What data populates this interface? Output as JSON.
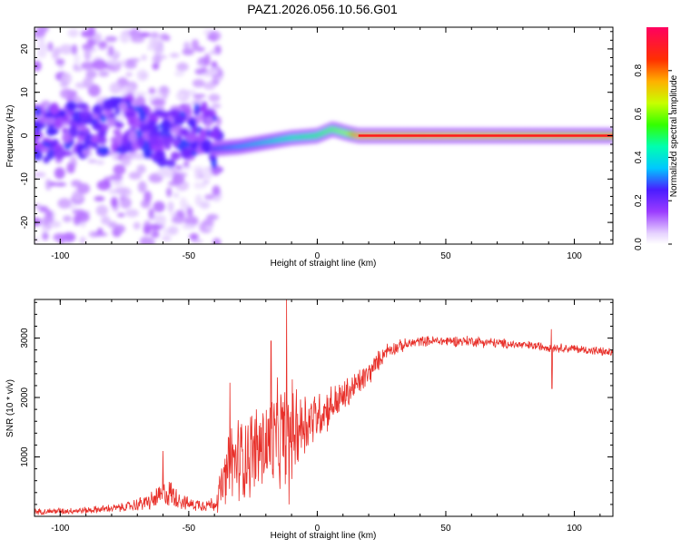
{
  "title": "PAZ1.2026.056.10.56.G01",
  "colors": {
    "snr_line": "#e8302a",
    "axis": "#000000",
    "spectrum_line": "#ff1a1a"
  },
  "chart_data": [
    {
      "type": "heatmap",
      "name": "spectrogram",
      "xlabel": "Height of straight line (km)",
      "ylabel": "Frequency (Hz)",
      "xlim": [
        -110,
        115
      ],
      "ylim": [
        -25,
        25
      ],
      "xticks": [
        -100,
        -50,
        0,
        50,
        100
      ],
      "yticks": [
        -20,
        -10,
        0,
        10,
        20
      ],
      "ridge": [
        {
          "x": -110,
          "y": 0,
          "a": 0.15
        },
        {
          "x": -80,
          "y": 2,
          "a": 0.2
        },
        {
          "x": -70,
          "y": 3,
          "a": 0.25
        },
        {
          "x": -60,
          "y": -1,
          "a": 0.22
        },
        {
          "x": -50,
          "y": 1,
          "a": 0.2
        },
        {
          "x": -42,
          "y": 3,
          "a": 0.18
        },
        {
          "x": -40,
          "y": -3,
          "a": 0.28
        },
        {
          "x": -30,
          "y": -2.5,
          "a": 0.35
        },
        {
          "x": -20,
          "y": -1.5,
          "a": 0.42
        },
        {
          "x": -10,
          "y": -0.5,
          "a": 0.5
        },
        {
          "x": 0,
          "y": 0,
          "a": 0.55
        },
        {
          "x": 6,
          "y": 1.5,
          "a": 0.6
        },
        {
          "x": 12,
          "y": 0.5,
          "a": 0.65
        },
        {
          "x": 16,
          "y": 0,
          "a": 0.95
        },
        {
          "x": 115,
          "y": 0,
          "a": 0.9
        }
      ],
      "colorbar": {
        "label": "Normalized spectral amplitude",
        "range": [
          0,
          1
        ],
        "ticks": [
          0.0,
          0.2,
          0.4,
          0.6,
          0.8
        ],
        "tick_labels": [
          "0.0",
          "0.2",
          "0.4",
          "0.6",
          "0.8"
        ]
      }
    },
    {
      "type": "line",
      "name": "snr",
      "xlabel": "Height of straight line (km)",
      "ylabel": "SNR (10 * v/v)",
      "xlim": [
        -110,
        115
      ],
      "ylim": [
        0,
        3650
      ],
      "xticks": [
        -100,
        -50,
        0,
        50,
        100
      ],
      "yticks": [
        1000,
        2000,
        3000
      ],
      "envelope": [
        {
          "x": -110,
          "y": 80,
          "n": 60
        },
        {
          "x": -90,
          "y": 100,
          "n": 70
        },
        {
          "x": -75,
          "y": 150,
          "n": 90
        },
        {
          "x": -65,
          "y": 250,
          "n": 180
        },
        {
          "x": -58,
          "y": 400,
          "n": 300
        },
        {
          "x": -50,
          "y": 200,
          "n": 120
        },
        {
          "x": -40,
          "y": 200,
          "n": 150
        },
        {
          "x": -36,
          "y": 600,
          "n": 600
        },
        {
          "x": -33,
          "y": 900,
          "n": 900
        },
        {
          "x": -25,
          "y": 1100,
          "n": 900
        },
        {
          "x": -15,
          "y": 1300,
          "n": 1100
        },
        {
          "x": -8,
          "y": 1500,
          "n": 900
        },
        {
          "x": 0,
          "y": 1700,
          "n": 500
        },
        {
          "x": 10,
          "y": 2000,
          "n": 350
        },
        {
          "x": 20,
          "y": 2400,
          "n": 250
        },
        {
          "x": 27,
          "y": 2800,
          "n": 150
        },
        {
          "x": 40,
          "y": 2950,
          "n": 100
        },
        {
          "x": 60,
          "y": 2950,
          "n": 110
        },
        {
          "x": 80,
          "y": 2880,
          "n": 90
        },
        {
          "x": 100,
          "y": 2820,
          "n": 90
        },
        {
          "x": 115,
          "y": 2750,
          "n": 90
        }
      ],
      "spikes": [
        {
          "x": -12,
          "y": 3650
        },
        {
          "x": -34,
          "y": 2250
        },
        {
          "x": -18,
          "y": 2950
        },
        {
          "x": -60,
          "y": 1100
        },
        {
          "x": 91,
          "y": 3150
        },
        {
          "x": 91.3,
          "y": 2150
        },
        {
          "x": -11,
          "y": 200
        }
      ]
    }
  ]
}
